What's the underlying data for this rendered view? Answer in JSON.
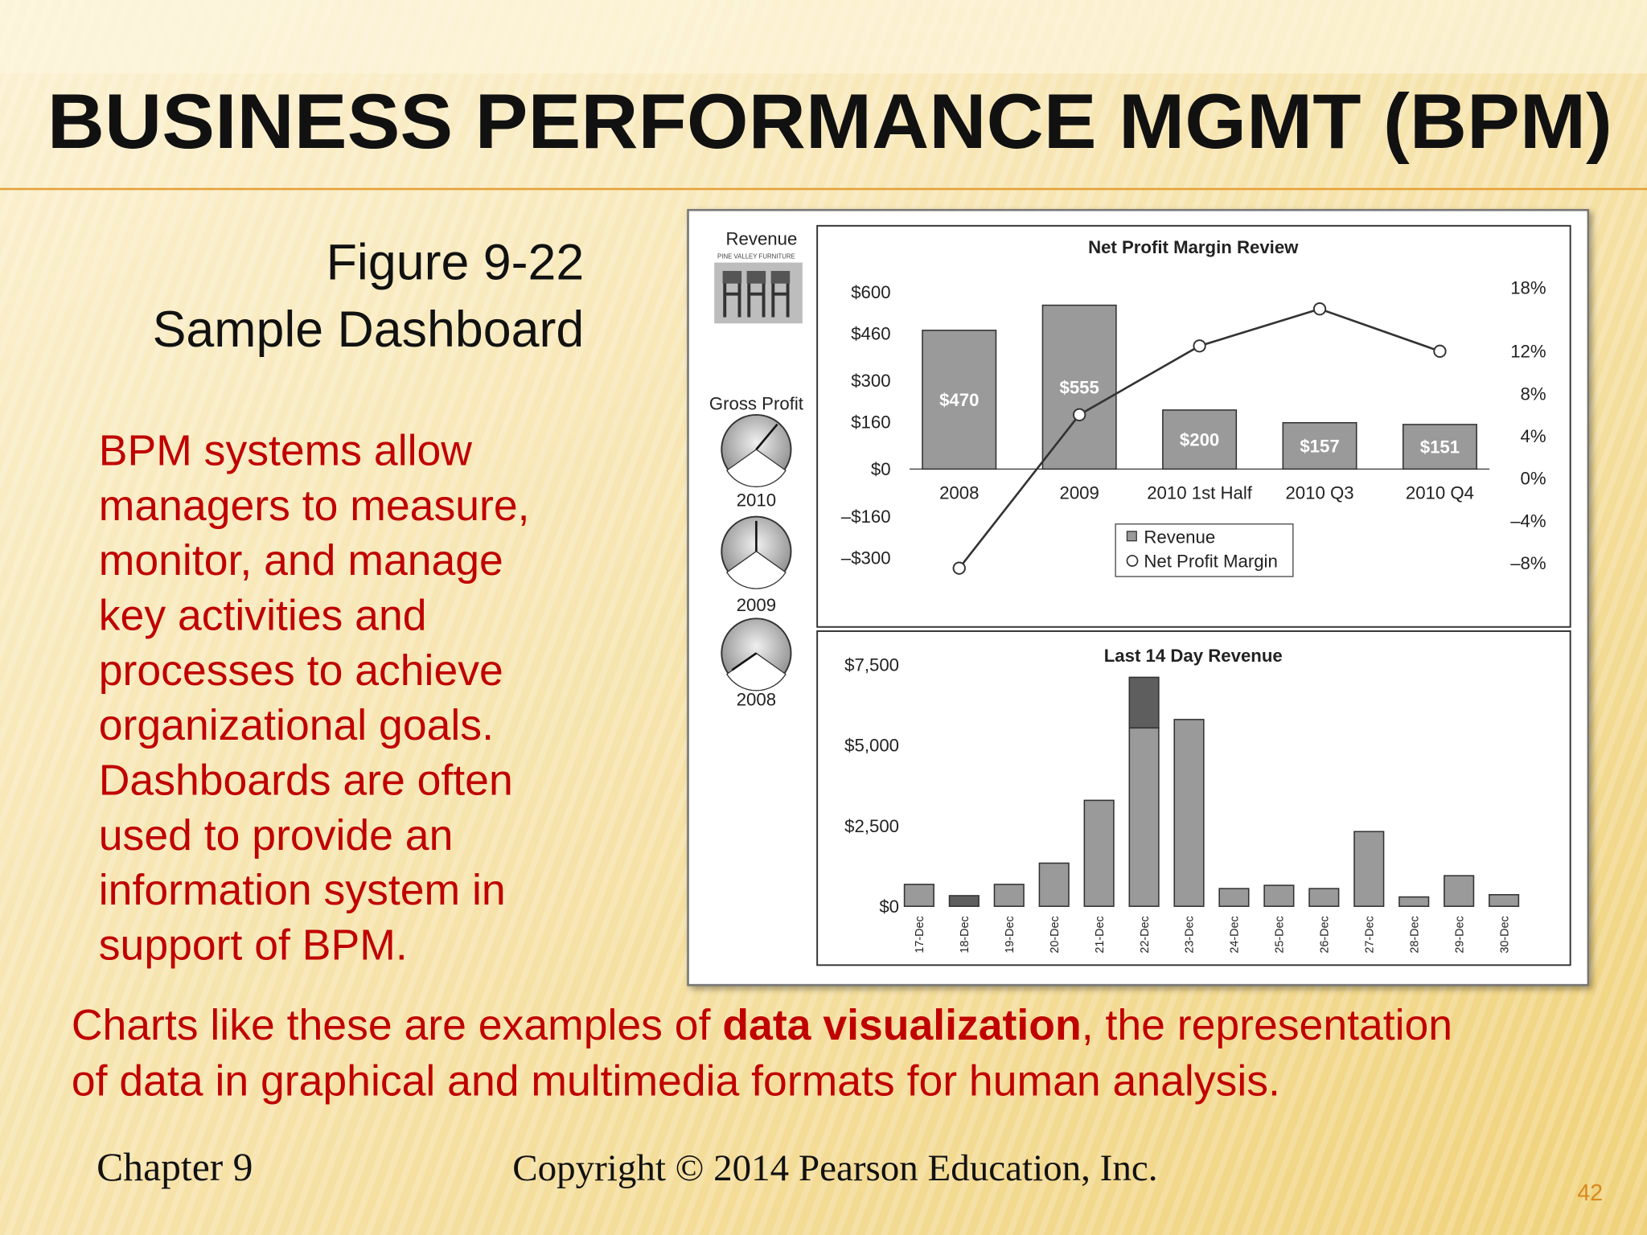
{
  "slide": {
    "title": "BUSINESS PERFORMANCE MGMT (BPM)",
    "figure_number": "Figure 9-22",
    "figure_caption": "Sample Dashboard",
    "paragraph": [
      "BPM systems allow",
      "managers to measure,",
      "monitor, and manage",
      "key activities and",
      "processes to achieve",
      "organizational goals.",
      "Dashboards are often",
      "used to provide an",
      "information system in",
      "support of BPM."
    ],
    "caption": [
      [
        "Charts like these are examples of ",
        "data visualization",
        ", the representation"
      ],
      [
        "of data in graphical and multimedia formats for human analysis."
      ]
    ],
    "footer_left": "Chapter 9",
    "footer_center": "Copyright © 2014 Pearson Education, Inc.",
    "page_number": "42"
  },
  "dashboard": {
    "revenue_label": "Revenue",
    "logo_text": "PINE VALLEY FURNITURE",
    "gross_profit_label": "Gross Profit",
    "gauge_labels": [
      "2010",
      "2009",
      "2008"
    ]
  },
  "chart_data": [
    {
      "type": "combo",
      "title": "Net Profit Margin Review",
      "categories": [
        "2008",
        "2009",
        "2010 1st Half",
        "2010 Q3",
        "2010 Q4"
      ],
      "series": [
        {
          "name": "Revenue",
          "type": "bar",
          "color": "#9a9a9a",
          "values": [
            470,
            555,
            200,
            157,
            151
          ],
          "value_labels": [
            "$470",
            "$555",
            "$200",
            "$157",
            "$151"
          ]
        },
        {
          "name": "Net Profit Margin",
          "type": "line",
          "axis": "y2",
          "color": "#333333",
          "values": [
            -8.5,
            6,
            12.5,
            16,
            12
          ]
        }
      ],
      "ylim": [
        -300,
        600
      ],
      "yticks": [
        {
          "value": 600,
          "label": "$600"
        },
        {
          "value": 460,
          "label": "$460"
        },
        {
          "value": 300,
          "label": "$300"
        },
        {
          "value": 160,
          "label": "$160"
        },
        {
          "value": 0,
          "label": "$0"
        },
        {
          "value": -160,
          "label": "–$160"
        },
        {
          "value": -300,
          "label": "–$300"
        }
      ],
      "y2lim": [
        -8,
        18
      ],
      "y2ticks": [
        {
          "value": 18,
          "label": "18%"
        },
        {
          "value": 12,
          "label": "12%"
        },
        {
          "value": 8,
          "label": "8%"
        },
        {
          "value": 4,
          "label": "4%"
        },
        {
          "value": 0,
          "label": "0%"
        },
        {
          "value": -4,
          "label": "–4%"
        },
        {
          "value": -8,
          "label": "–8%"
        }
      ]
    },
    {
      "type": "bar",
      "stacked": true,
      "title": "Last 14 Day Revenue",
      "categories": [
        "17-Dec",
        "18-Dec",
        "19-Dec",
        "20-Dec",
        "21-Dec",
        "22-Dec",
        "23-Dec",
        "24-Dec",
        "25-Dec",
        "26-Dec",
        "27-Dec",
        "28-Dec",
        "29-Dec",
        "30-Dec"
      ],
      "series": [
        {
          "color": "#9a9a9a",
          "values": [
            680,
            null,
            680,
            1340,
            3290,
            5540,
            5800,
            550,
            650,
            550,
            2320,
            290,
            950,
            360
          ]
        },
        {
          "color": "#5e5e5e",
          "values": [
            null,
            330,
            null,
            null,
            null,
            1570,
            null,
            null,
            null,
            null,
            null,
            null,
            null,
            null
          ]
        }
      ],
      "ylim": [
        0,
        7500
      ],
      "yticks": [
        {
          "value": 0,
          "label": "$0"
        },
        {
          "value": 2500,
          "label": "$2,500"
        },
        {
          "value": 5000,
          "label": "$5,000"
        },
        {
          "value": 7500,
          "label": "$7,500"
        }
      ]
    }
  ]
}
